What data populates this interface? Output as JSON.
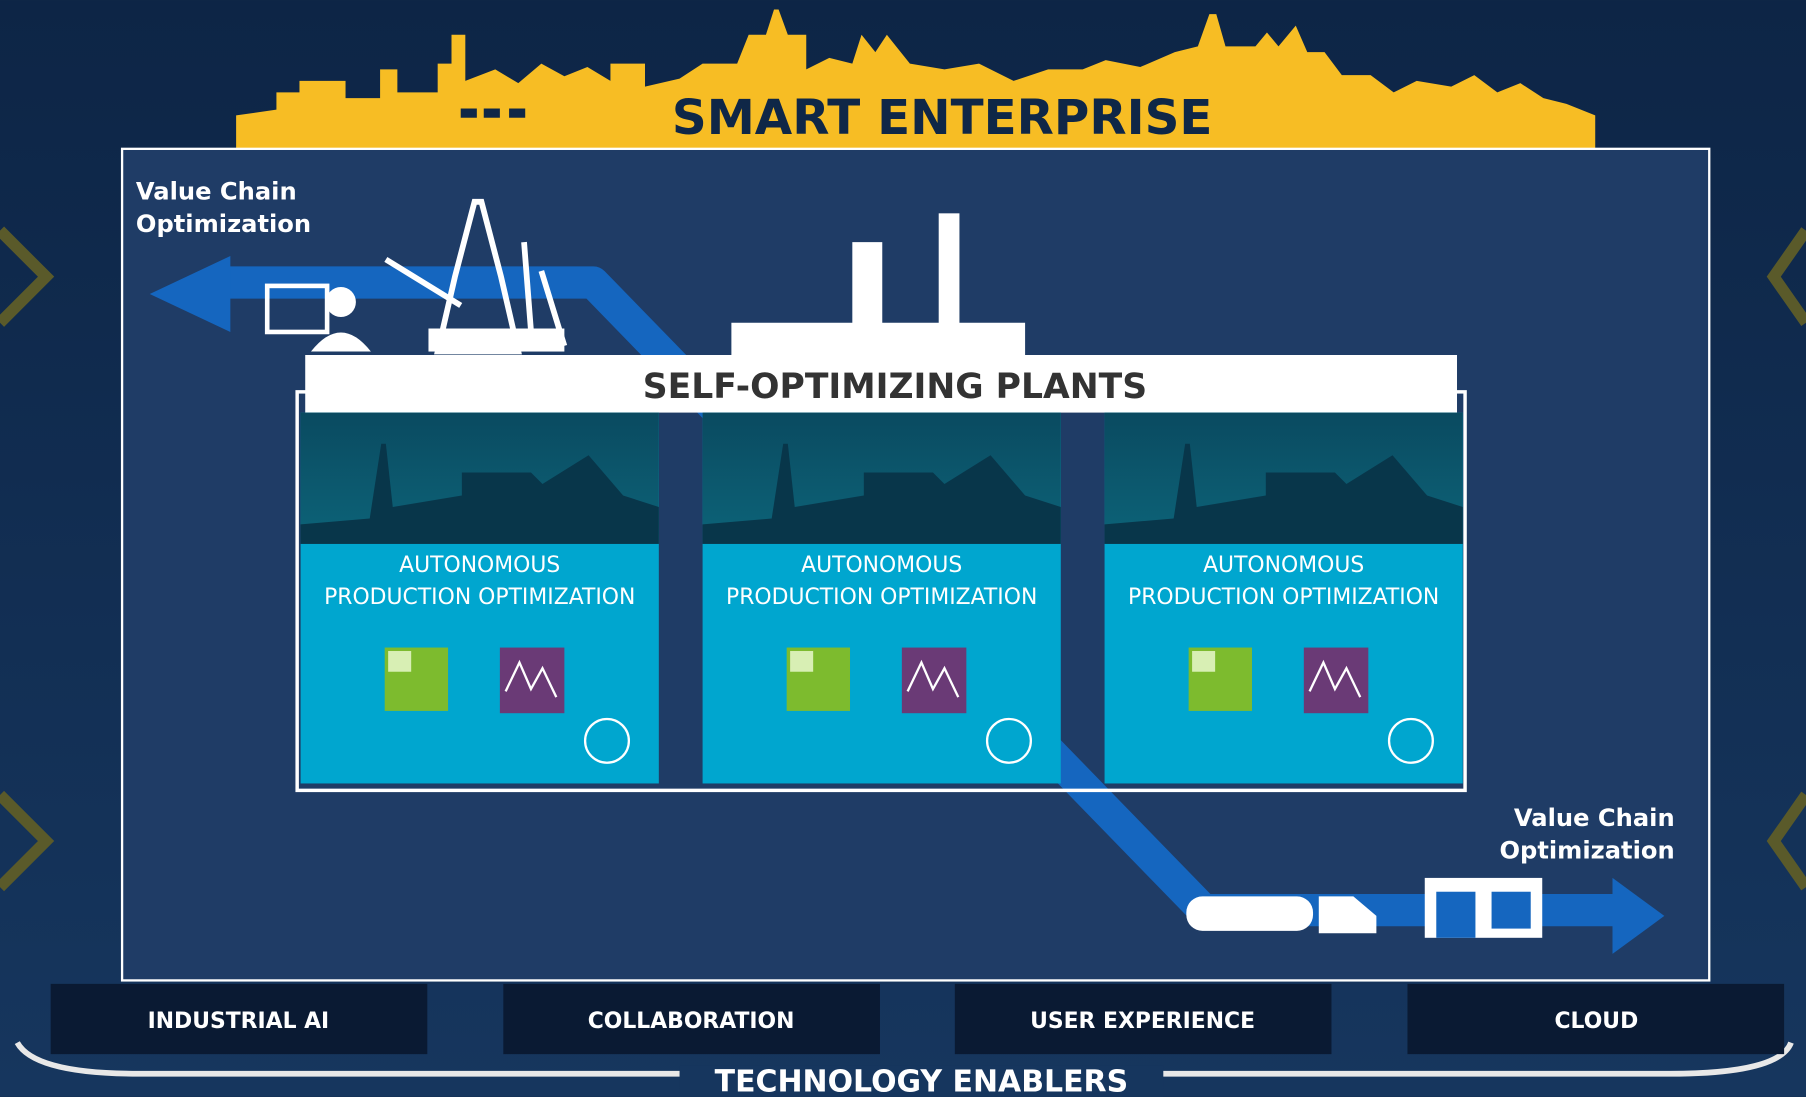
{
  "header": {
    "title": "SMART ENTERPRISE"
  },
  "value_chain": [
    {
      "lines": [
        "Value Chain",
        "Optimization"
      ]
    },
    {
      "lines": [
        "Value Chain",
        "Optimization"
      ]
    }
  ],
  "plants": {
    "title": "SELF-OPTIMIZING PLANTS",
    "panels": [
      {
        "lines": [
          "AUTONOMOUS",
          "PRODUCTION OPTIMIZATION"
        ]
      },
      {
        "lines": [
          "AUTONOMOUS",
          "PRODUCTION OPTIMIZATION"
        ]
      },
      {
        "lines": [
          "AUTONOMOUS",
          "PRODUCTION OPTIMIZATION"
        ]
      }
    ]
  },
  "enablers": {
    "title": "TECHNOLOGY ENABLERS",
    "items": [
      "INDUSTRIAL AI",
      "COLLABORATION",
      "USER EXPERIENCE",
      "CLOUD"
    ]
  }
}
